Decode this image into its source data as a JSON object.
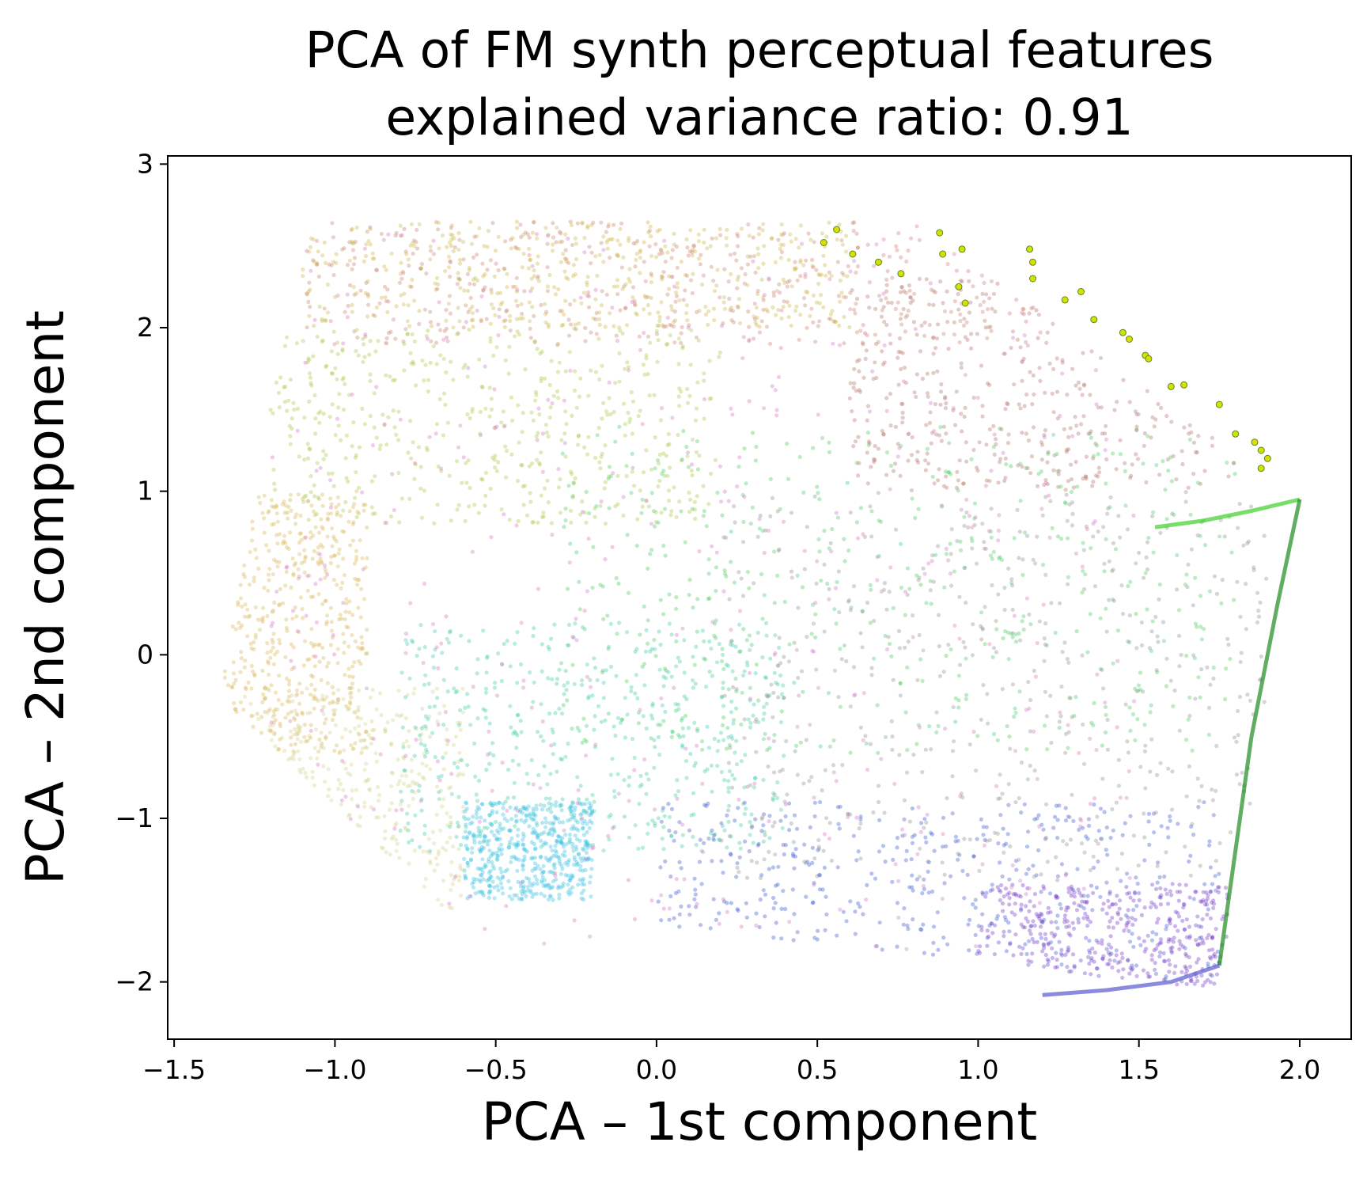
{
  "chart_data": {
    "type": "scatter",
    "title": "PCA of FM synth perceptual features",
    "subtitle": "explained variance ratio: 0.91",
    "xlabel": "PCA – 1st component",
    "ylabel": "PCA – 2nd component",
    "xlim": [
      -1.52,
      2.16
    ],
    "ylim": [
      -2.35,
      3.05
    ],
    "x_ticks": [
      -1.5,
      -1.0,
      -0.5,
      0.0,
      0.5,
      1.0,
      1.5,
      2.0
    ],
    "x_tick_labels": [
      "−1.5",
      "−1.0",
      "−0.5",
      "0.0",
      "0.5",
      "1.0",
      "1.5",
      "2.0"
    ],
    "y_ticks": [
      -2,
      -1,
      0,
      1,
      2,
      3
    ],
    "y_tick_labels": [
      "−2",
      "−1",
      "0",
      "1",
      "2",
      "3"
    ],
    "grid": false,
    "legend": "none",
    "point_alpha": 0.35,
    "regions": [
      {
        "description_color": "#c9b03c",
        "color": "#c8b23a",
        "x_range": [
          -1.1,
          0.6
        ],
        "y_range": [
          2.0,
          2.7
        ]
      },
      {
        "color": "#c97a6a",
        "x_range": [
          -1.1,
          1.2
        ],
        "y_range": [
          1.9,
          2.75
        ]
      },
      {
        "color": "#a5c43a",
        "x_range": [
          -1.2,
          0.2
        ],
        "y_range": [
          0.8,
          2.0
        ]
      },
      {
        "color": "#d8b24a",
        "x_range": [
          -1.35,
          -0.9
        ],
        "y_range": [
          -0.6,
          1.0
        ]
      },
      {
        "color": "#d0d08a",
        "x_range": [
          -1.3,
          -0.6
        ],
        "y_range": [
          -1.6,
          -0.2
        ]
      },
      {
        "color": "#33c9a0",
        "x_range": [
          -0.8,
          0.4
        ],
        "y_range": [
          -1.2,
          0.2
        ]
      },
      {
        "color": "#3ec85a",
        "x_range": [
          -0.3,
          1.8
        ],
        "y_range": [
          -0.6,
          1.4
        ]
      },
      {
        "color": "#2fbce0",
        "x_range": [
          -0.6,
          -0.2
        ],
        "y_range": [
          -1.5,
          -0.9
        ]
      },
      {
        "color": "#2e4ccc",
        "x_range": [
          0.0,
          1.75
        ],
        "y_range": [
          -2.0,
          -0.9
        ]
      },
      {
        "color": "#6a2ec8",
        "x_range": [
          1.0,
          1.8
        ],
        "y_range": [
          -2.1,
          -1.4
        ]
      },
      {
        "color": "#8a8a8a",
        "x_range": [
          0.2,
          1.9
        ],
        "y_range": [
          -1.4,
          1.0
        ]
      },
      {
        "color": "#b06e62",
        "x_range": [
          0.6,
          1.8
        ],
        "y_range": [
          1.0,
          2.3
        ]
      },
      {
        "color": "#d070c0",
        "x_range": [
          -1.2,
          1.5
        ],
        "y_range": [
          -1.8,
          2.6
        ]
      }
    ],
    "highlighted_points": {
      "color": "#d8e000",
      "x": [
        0.52,
        0.56,
        0.61,
        0.69,
        0.76,
        0.88,
        0.89,
        0.95,
        0.94,
        0.96,
        1.16,
        1.17,
        1.17,
        1.27,
        1.32,
        1.36,
        1.45,
        1.47,
        1.52,
        1.53,
        1.6,
        1.64,
        1.75,
        1.8,
        1.86,
        1.88,
        1.9,
        1.88
      ],
      "y": [
        2.52,
        2.6,
        2.45,
        2.4,
        2.33,
        2.58,
        2.45,
        2.48,
        2.25,
        2.15,
        2.48,
        2.4,
        2.3,
        2.17,
        2.22,
        2.05,
        1.97,
        1.93,
        1.83,
        1.81,
        1.64,
        1.65,
        1.53,
        1.35,
        1.3,
        1.25,
        1.2,
        1.14
      ]
    },
    "trajectory_lines": [
      {
        "color": "#3ecf2a",
        "x": [
          1.55,
          1.7,
          1.85,
          2.0
        ],
        "y": [
          0.78,
          0.82,
          0.88,
          0.95
        ]
      },
      {
        "color": "#1e8a1e",
        "x": [
          1.75,
          1.85,
          1.93,
          2.0
        ],
        "y": [
          -1.9,
          -0.5,
          0.3,
          0.95
        ]
      },
      {
        "color": "#5a5ad0",
        "x": [
          1.2,
          1.4,
          1.6,
          1.75
        ],
        "y": [
          -2.08,
          -2.05,
          -2.0,
          -1.9
        ]
      }
    ]
  }
}
